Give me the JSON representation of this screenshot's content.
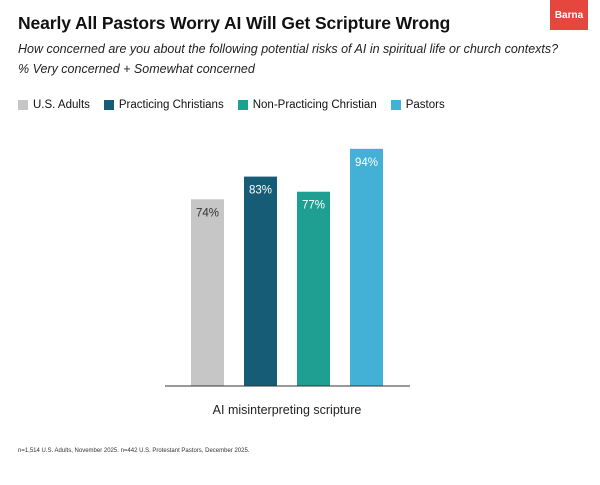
{
  "header": {
    "title": "Nearly All Pastors Worry AI Will Get Scripture Wrong",
    "logo_text": "Barna",
    "subtitle": "How concerned are you about the following potential risks of AI in spiritual life or church contexts?",
    "measure": "% Very concerned + Somewhat concerned"
  },
  "footnote": "n=1,514 U.S. Adults, November 2025. n=442 U.S. Protestant Pastors, December 2025.",
  "colors": {
    "brand": "#e5473f",
    "us_adults": "#c6c6c6",
    "practicing": "#175c76",
    "non_practicing": "#1f9e92",
    "pastors": "#43b1d6"
  },
  "chart_data": {
    "type": "bar",
    "categories": [
      "AI misinterpreting scripture"
    ],
    "series": [
      {
        "name": "U.S. Adults",
        "values": [
          74
        ],
        "labels": [
          "74%"
        ],
        "color": "#c6c6c6",
        "label_color": "#333333"
      },
      {
        "name": "Practicing Christians",
        "values": [
          83
        ],
        "labels": [
          "83%"
        ],
        "color": "#175c76",
        "label_color": "#ffffff"
      },
      {
        "name": "Non-Practicing Christian",
        "values": [
          77
        ],
        "labels": [
          "77%"
        ],
        "color": "#1f9e92",
        "label_color": "#ffffff"
      },
      {
        "name": "Pastors",
        "values": [
          94
        ],
        "labels": [
          "94%"
        ],
        "color": "#43b1d6",
        "label_color": "#ffffff"
      }
    ],
    "ylim": [
      0,
      100
    ],
    "grid": false,
    "legend": "top-left"
  }
}
